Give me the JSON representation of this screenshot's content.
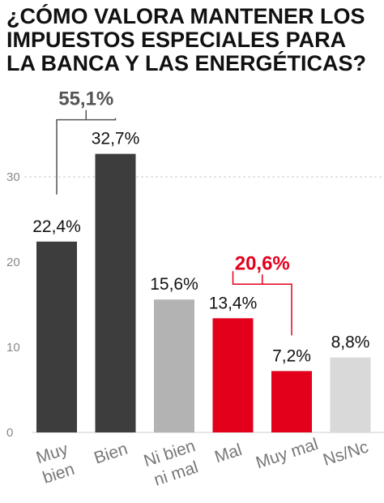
{
  "title_lines": [
    "¿CÓMO VALORA MANTENER LOS",
    "IMPUESTOS ESPECIALES PARA",
    "LA BANCA Y LAS ENERGÉTICAS?"
  ],
  "chart_data": {
    "type": "bar",
    "title": "¿CÓMO VALORA MANTENER LOS IMPUESTOS ESPECIALES PARA LA BANCA Y LAS ENERGÉTICAS?",
    "categories": [
      "Muy bien",
      "Bien",
      "Ni bien ni mal",
      "Mal",
      "Muy mal",
      "Ns/Nc"
    ],
    "category_lines": [
      [
        "Muy",
        "bien"
      ],
      [
        "Bien"
      ],
      [
        "Ni bien",
        "ni mal"
      ],
      [
        "Mal"
      ],
      [
        "Muy mal"
      ],
      [
        "Ns/Nc"
      ]
    ],
    "values": [
      22.4,
      32.7,
      15.6,
      13.4,
      7.2,
      8.8
    ],
    "value_labels": [
      "22,4%",
      "32,7%",
      "15,6%",
      "13,4%",
      "7,2%",
      "8,8%"
    ],
    "bar_colors": [
      "#3d3d3d",
      "#3d3d3d",
      "#b3b3b3",
      "#e3001b",
      "#e3001b",
      "#d9d9d9"
    ],
    "yticks": [
      0,
      10,
      20,
      30
    ],
    "ylim": [
      0,
      36
    ],
    "grid": "dashed line at 30",
    "groups": [
      {
        "label": "55,1%",
        "bars": [
          0,
          1
        ],
        "color": "#555555"
      },
      {
        "label": "20,6%",
        "bars": [
          3,
          4
        ],
        "color": "#e3001b"
      }
    ]
  }
}
